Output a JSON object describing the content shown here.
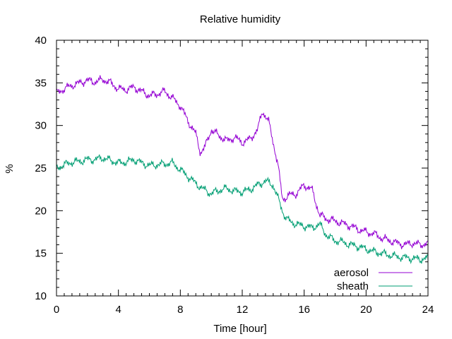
{
  "chart_data": {
    "type": "line",
    "title": "Relative humidity",
    "xlabel": "Time [hour]",
    "ylabel": "%",
    "xlim": [
      0,
      24
    ],
    "ylim": [
      10,
      40
    ],
    "x_ticks": [
      0,
      4,
      8,
      12,
      16,
      20,
      24
    ],
    "y_ticks": [
      10,
      15,
      20,
      25,
      30,
      35,
      40
    ],
    "grid": false,
    "legend_position": "bottom-right",
    "series": [
      {
        "name": "aerosol",
        "color": "#9400d3",
        "x": [
          0,
          0.5,
          1,
          1.5,
          2,
          2.5,
          3,
          3.5,
          4,
          4.5,
          5,
          5.5,
          6,
          6.5,
          7,
          7.5,
          8,
          8.5,
          9,
          9.3,
          9.6,
          10,
          10.5,
          11,
          11.5,
          12,
          12.5,
          13,
          13.3,
          13.7,
          14,
          14.3,
          14.6,
          15,
          15.5,
          16,
          16.5,
          17,
          17.5,
          18,
          18.5,
          19,
          19.5,
          20,
          20.5,
          21,
          21.5,
          22,
          22.5,
          23,
          23.5,
          24
        ],
        "y": [
          33.8,
          34.3,
          34.7,
          35.0,
          35.3,
          35.1,
          35.4,
          35.0,
          34.3,
          34.2,
          34.5,
          34.0,
          33.5,
          33.7,
          34.0,
          33.2,
          32.3,
          30.5,
          29.0,
          26.8,
          27.5,
          29.5,
          28.8,
          28.2,
          28.6,
          28.0,
          28.4,
          29.5,
          31.7,
          30.5,
          28.0,
          25.5,
          21.3,
          21.8,
          22.0,
          23.0,
          22.5,
          19.5,
          19.0,
          18.8,
          18.5,
          18.2,
          17.8,
          17.5,
          17.3,
          16.8,
          16.5,
          16.2,
          16.0,
          16.2,
          16.0,
          16.2
        ]
      },
      {
        "name": "sheath",
        "color": "#009e73",
        "x": [
          0,
          0.5,
          1,
          1.5,
          2,
          2.5,
          3,
          3.5,
          4,
          4.5,
          5,
          5.5,
          6,
          6.5,
          7,
          7.5,
          8,
          8.5,
          9,
          9.5,
          10,
          10.5,
          11,
          11.5,
          12,
          12.5,
          13,
          13.5,
          14,
          14.3,
          14.7,
          15,
          15.5,
          16,
          16.5,
          17,
          17.5,
          18,
          18.5,
          19,
          19.5,
          20,
          20.5,
          21,
          21.5,
          22,
          22.5,
          23,
          23.5,
          24
        ],
        "y": [
          25.0,
          25.4,
          25.7,
          25.8,
          26.0,
          26.0,
          26.2,
          25.9,
          25.6,
          25.7,
          26.0,
          25.6,
          25.3,
          25.4,
          25.5,
          25.6,
          24.8,
          24.0,
          23.2,
          22.5,
          22.0,
          22.4,
          22.6,
          22.3,
          22.2,
          22.5,
          23.0,
          23.5,
          23.0,
          21.5,
          19.5,
          18.8,
          18.4,
          18.2,
          18.0,
          18.4,
          17.0,
          16.5,
          16.3,
          16.0,
          15.8,
          15.5,
          15.2,
          15.0,
          14.8,
          14.6,
          14.5,
          14.4,
          14.3,
          14.4
        ]
      }
    ]
  }
}
